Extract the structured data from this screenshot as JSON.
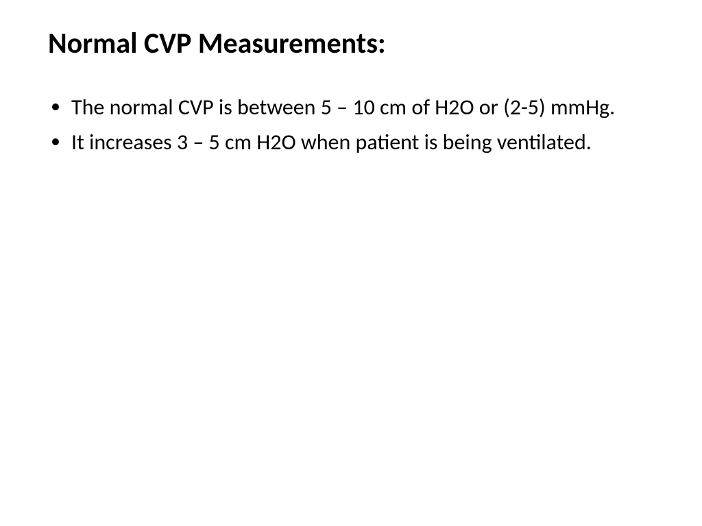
{
  "slide": {
    "title": "Normal CVP Measurements:",
    "bullets": [
      "The normal CVP is between 5 – 10 cm of H2O or (2-5) mmHg.",
      "It increases 3 – 5 cm H2O when patient is being ventilated."
    ],
    "background_color": "#ffffff",
    "text_color": "#000000",
    "title_fontsize": 42,
    "title_weight": 700,
    "body_fontsize": 32,
    "body_weight": 400
  }
}
